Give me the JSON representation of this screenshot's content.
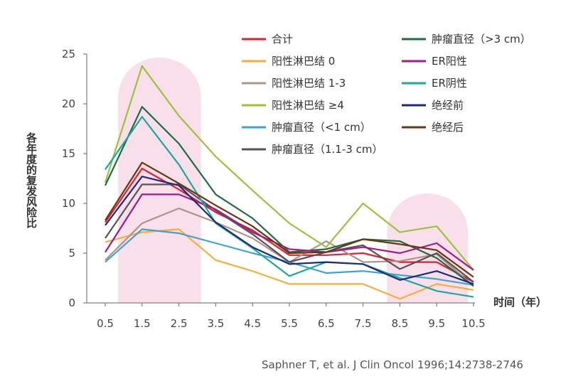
{
  "chart_data": {
    "type": "line",
    "ylabel": "各年度的复发风险比",
    "xlabel": "时间（年）",
    "x": [
      "0.5",
      "1.5",
      "2.5",
      "3.5",
      "4.5",
      "5.5",
      "6.5",
      "7.5",
      "8.5",
      "9.5",
      "10.5"
    ],
    "ylim": [
      0,
      25
    ],
    "yticks": [
      "0",
      "5",
      "10",
      "15",
      "20",
      "25"
    ],
    "grid": false,
    "legend_position": "top-right",
    "highlight_regions": [
      [
        0.85,
        3.1
      ],
      [
        8.15,
        10.35
      ]
    ],
    "highlight_color": "#f9dfea",
    "series": [
      {
        "name": "合计",
        "color": "#e0202e",
        "values": [
          8.1,
          13.5,
          11.4,
          9.1,
          7.3,
          4.8,
          4.8,
          5.0,
          4.1,
          4.1,
          2.1
        ]
      },
      {
        "name": "阳性淋巴结 0",
        "color": "#f6ae3b",
        "values": [
          6.1,
          7.1,
          7.4,
          4.3,
          3.2,
          1.9,
          1.9,
          1.9,
          0.4,
          1.9,
          1.3
        ]
      },
      {
        "name": "阳性淋巴结 1-3",
        "color": "#ad9489",
        "values": [
          4.3,
          8.0,
          9.5,
          8.1,
          6.5,
          4.1,
          6.2,
          4.1,
          4.2,
          4.9,
          1.7
        ]
      },
      {
        "name": "阳性淋巴结 ≥4",
        "color": "#9ac23c",
        "values": [
          12.1,
          23.8,
          18.8,
          14.7,
          11.3,
          8.0,
          5.6,
          10.0,
          7.1,
          7.7,
          3.3
        ]
      },
      {
        "name": "肿瘤直径（<1 cm）",
        "color": "#3ea3cf",
        "values": [
          4.1,
          7.4,
          7.0,
          6.0,
          5.0,
          4.1,
          3.0,
          3.2,
          2.8,
          2.4,
          1.8
        ]
      },
      {
        "name": "肿瘤直径（1.1-3 cm）",
        "color": "#5a5158",
        "values": [
          6.5,
          11.9,
          11.9,
          9.3,
          6.9,
          4.1,
          5.1,
          5.8,
          3.4,
          5.0,
          2.1
        ]
      },
      {
        "name": "肿瘤直径（>3 cm）",
        "color": "#1f6b45",
        "values": [
          11.8,
          19.7,
          16.0,
          10.9,
          8.5,
          5.1,
          5.4,
          6.4,
          6.2,
          4.5,
          1.7
        ]
      },
      {
        "name": "ER阳性",
        "color": "#9b1f8a",
        "values": [
          5.1,
          10.9,
          10.9,
          9.4,
          7.1,
          5.4,
          5.1,
          5.6,
          5.0,
          6.0,
          3.3
        ]
      },
      {
        "name": "ER阴性",
        "color": "#1aa89a",
        "values": [
          13.4,
          18.7,
          13.9,
          8.0,
          5.5,
          2.7,
          4.1,
          3.9,
          2.5,
          1.2,
          0.6
        ]
      },
      {
        "name": "绝经前",
        "color": "#1c2a7c",
        "values": [
          7.8,
          12.7,
          11.8,
          8.1,
          5.6,
          3.9,
          4.1,
          3.9,
          2.3,
          3.2,
          1.9
        ]
      },
      {
        "name": "绝经后",
        "color": "#6b3510",
        "values": [
          8.3,
          14.1,
          12.0,
          9.8,
          7.7,
          5.0,
          5.1,
          6.4,
          5.9,
          5.3,
          2.6
        ]
      }
    ],
    "legend_left": [
      "合计",
      "阳性淋巴结 0",
      "阳性淋巴结 1-3",
      "阳性淋巴结 ≥4",
      "肿瘤直径（<1 cm）",
      "肿瘤直径（1.1-3 cm）"
    ],
    "legend_right": [
      "肿瘤直径（>3 cm）",
      "ER阳性",
      "ER阴性",
      "绝经前",
      "绝经后"
    ]
  },
  "citation": "Saphner T, et al. J Clin Oncol 1996;14:2738-2746"
}
